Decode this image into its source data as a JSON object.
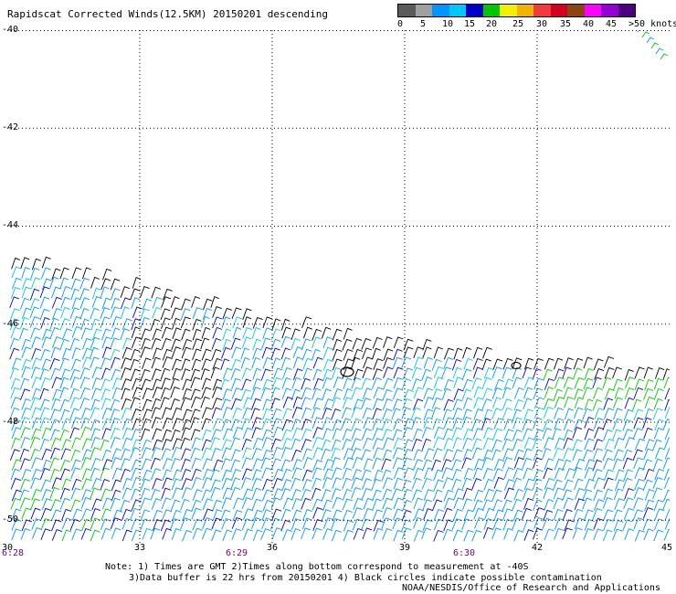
{
  "title": "Rapidscat Corrected Winds(12.5KM) 20150201 descending",
  "legend": {
    "colors": [
      "#5a5a5a",
      "#a0a0a0",
      "#0096ff",
      "#00c8ff",
      "#0000c8",
      "#00c800",
      "#f0f000",
      "#f0b400",
      "#f03c3c",
      "#d2001e",
      "#8b4513",
      "#ff00ff",
      "#9400d3",
      "#4b0082"
    ],
    "labels": [
      "0",
      "5",
      "10",
      "15",
      "20",
      "25",
      "30",
      "35",
      "40",
      "45",
      ">50 knots"
    ]
  },
  "axes": {
    "lat_labels": [
      "-40",
      "-42",
      "-44",
      "-46",
      "-48",
      "-50"
    ],
    "lon_labels": [
      "30",
      "33",
      "36",
      "39",
      "42",
      "45"
    ],
    "time_labels": [
      "6:28",
      "6:29",
      "6:30"
    ]
  },
  "notes": {
    "line1": "Note: 1) Times are GMT 2)Times along bottom correspond to measurement at -40S",
    "line2": "3)Data buffer is 22 hrs from 20150201 4) Black circles indicate possible contamination",
    "line3": "NOAA/NESDIS/Office of Research and Applications"
  },
  "map": {
    "lon_range": [
      30,
      45
    ],
    "lat_range": [
      -40,
      -50.5
    ],
    "grid": "dotted",
    "wind_field": "dense barbs, mostly 10-20 knots; swath begins near -45 to -47 latitude"
  }
}
